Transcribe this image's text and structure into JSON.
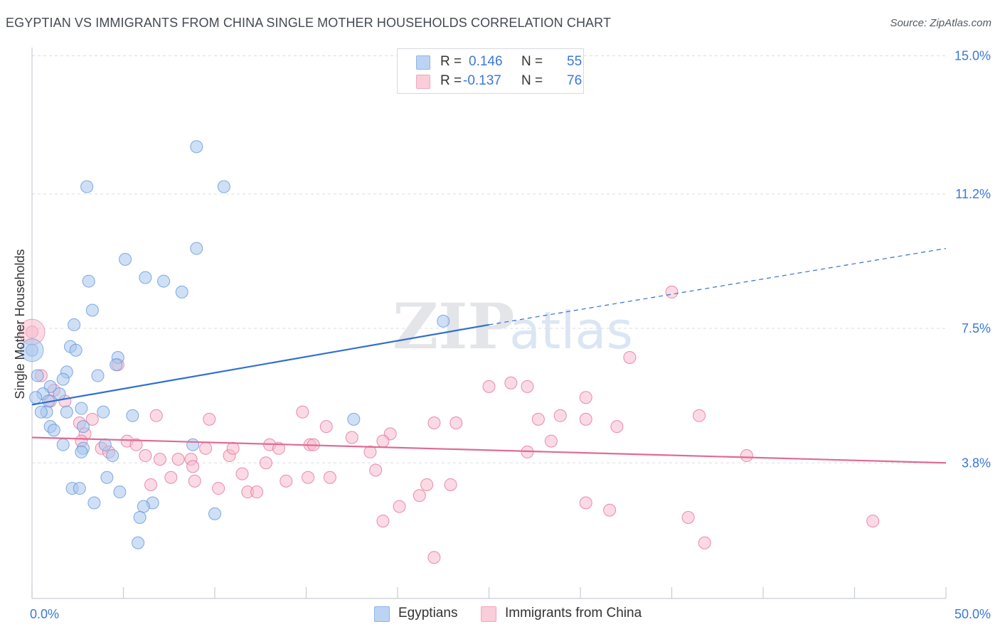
{
  "title": "EGYPTIAN VS IMMIGRANTS FROM CHINA SINGLE MOTHER HOUSEHOLDS CORRELATION CHART",
  "source": "Source: ZipAtlas.com",
  "watermark": {
    "zip": "ZIP",
    "atlas": "atlas"
  },
  "legend": {
    "r_label": "R =",
    "n_label": "N =",
    "egyptians": {
      "r": "0.146",
      "n": "55",
      "color": "#9dc0ee"
    },
    "china": {
      "r": "-0.137",
      "n": "76",
      "color": "#f6b6c8"
    }
  },
  "chart_data": {
    "type": "scatter",
    "title": "EGYPTIAN VS IMMIGRANTS FROM CHINA SINGLE MOTHER HOUSEHOLDS CORRELATION CHART",
    "xlabel": "",
    "ylabel": "Single Mother Households",
    "xlim": [
      0,
      50
    ],
    "ylim": [
      0,
      15
    ],
    "x_tick_labels": [
      "0.0%",
      "50.0%"
    ],
    "y_ticks": [
      3.8,
      7.5,
      11.2,
      15.0
    ],
    "y_tick_labels": [
      "3.8%",
      "7.5%",
      "11.2%",
      "15.0%"
    ],
    "grid": "horizontal dashed",
    "legend_position": "top-center and bottom",
    "series": [
      {
        "name": "Egyptians",
        "color": "#5b8fd6",
        "fill": "#a8c6ee",
        "r": 0.146,
        "n": 55,
        "trend": {
          "x0": 0,
          "y0": 5.4,
          "x1": 25,
          "y1": 7.6,
          "dashed_to_x": 50,
          "dashed_to_y": 9.7
        },
        "points": [
          [
            3.0,
            11.4
          ],
          [
            9.0,
            12.5
          ],
          [
            10.5,
            11.4
          ],
          [
            5.1,
            9.4
          ],
          [
            9.0,
            9.7
          ],
          [
            6.2,
            8.9
          ],
          [
            7.2,
            8.8
          ],
          [
            3.1,
            8.8
          ],
          [
            8.2,
            8.5
          ],
          [
            3.3,
            8.0
          ],
          [
            2.3,
            7.6
          ],
          [
            2.1,
            7.0
          ],
          [
            2.4,
            6.9
          ],
          [
            4.7,
            6.7
          ],
          [
            4.6,
            6.5
          ],
          [
            0.0,
            6.9
          ],
          [
            0.3,
            6.2
          ],
          [
            1.9,
            6.3
          ],
          [
            3.6,
            6.2
          ],
          [
            1.7,
            6.1
          ],
          [
            1.0,
            5.9
          ],
          [
            0.6,
            5.7
          ],
          [
            1.5,
            5.7
          ],
          [
            0.2,
            5.6
          ],
          [
            0.9,
            5.5
          ],
          [
            0.8,
            5.2
          ],
          [
            1.9,
            5.2
          ],
          [
            2.7,
            5.3
          ],
          [
            0.5,
            5.2
          ],
          [
            3.9,
            5.2
          ],
          [
            5.5,
            5.1
          ],
          [
            17.6,
            5.0
          ],
          [
            1.0,
            4.8
          ],
          [
            1.2,
            4.7
          ],
          [
            2.8,
            4.8
          ],
          [
            8.8,
            4.3
          ],
          [
            1.7,
            4.3
          ],
          [
            4.0,
            4.3
          ],
          [
            2.8,
            4.2
          ],
          [
            2.7,
            4.1
          ],
          [
            4.4,
            4.0
          ],
          [
            4.1,
            3.4
          ],
          [
            2.2,
            3.1
          ],
          [
            2.6,
            3.1
          ],
          [
            4.8,
            3.0
          ],
          [
            3.4,
            2.7
          ],
          [
            6.6,
            2.7
          ],
          [
            6.1,
            2.6
          ],
          [
            10.0,
            2.4
          ],
          [
            5.9,
            2.3
          ],
          [
            5.8,
            1.6
          ],
          [
            22.5,
            7.7
          ]
        ]
      },
      {
        "name": "Immigrants from China",
        "color": "#e06a95",
        "fill": "#f7bccc",
        "r": -0.137,
        "n": 76,
        "trend": {
          "x0": 0,
          "y0": 4.5,
          "x1": 50,
          "y1": 3.8
        },
        "points": [
          [
            0.0,
            7.4
          ],
          [
            0.5,
            6.2
          ],
          [
            4.7,
            6.5
          ],
          [
            1.2,
            5.8
          ],
          [
            1.8,
            5.5
          ],
          [
            1.0,
            5.5
          ],
          [
            3.3,
            5.0
          ],
          [
            6.8,
            5.1
          ],
          [
            9.7,
            5.0
          ],
          [
            14.8,
            5.2
          ],
          [
            16.1,
            4.8
          ],
          [
            19.6,
            4.6
          ],
          [
            22.0,
            4.9
          ],
          [
            23.2,
            4.9
          ],
          [
            25.0,
            5.9
          ],
          [
            26.2,
            6.0
          ],
          [
            27.1,
            5.9
          ],
          [
            27.7,
            5.0
          ],
          [
            28.9,
            5.1
          ],
          [
            30.3,
            5.6
          ],
          [
            30.3,
            5.0
          ],
          [
            32.0,
            4.8
          ],
          [
            32.7,
            6.7
          ],
          [
            35.0,
            8.5
          ],
          [
            36.5,
            5.1
          ],
          [
            2.6,
            4.9
          ],
          [
            2.9,
            4.6
          ],
          [
            2.7,
            4.4
          ],
          [
            3.8,
            4.2
          ],
          [
            4.2,
            4.1
          ],
          [
            5.2,
            4.4
          ],
          [
            5.7,
            4.3
          ],
          [
            6.2,
            4.0
          ],
          [
            7.0,
            3.9
          ],
          [
            8.0,
            3.9
          ],
          [
            8.7,
            3.9
          ],
          [
            8.8,
            3.7
          ],
          [
            9.5,
            4.2
          ],
          [
            10.8,
            4.0
          ],
          [
            11.0,
            4.2
          ],
          [
            11.5,
            3.5
          ],
          [
            12.8,
            3.8
          ],
          [
            13.0,
            4.3
          ],
          [
            13.5,
            4.2
          ],
          [
            15.2,
            4.3
          ],
          [
            15.4,
            4.3
          ],
          [
            17.5,
            4.5
          ],
          [
            18.5,
            4.1
          ],
          [
            19.2,
            4.4
          ],
          [
            6.5,
            3.2
          ],
          [
            7.6,
            3.4
          ],
          [
            8.9,
            3.3
          ],
          [
            10.2,
            3.1
          ],
          [
            11.8,
            3.0
          ],
          [
            12.3,
            3.0
          ],
          [
            13.9,
            3.3
          ],
          [
            15.1,
            3.4
          ],
          [
            16.3,
            3.4
          ],
          [
            18.8,
            3.6
          ],
          [
            20.1,
            2.6
          ],
          [
            19.2,
            2.2
          ],
          [
            21.2,
            2.9
          ],
          [
            21.6,
            3.2
          ],
          [
            22.9,
            3.2
          ],
          [
            27.1,
            4.1
          ],
          [
            28.4,
            4.4
          ],
          [
            30.3,
            2.7
          ],
          [
            31.6,
            2.5
          ],
          [
            35.9,
            2.3
          ],
          [
            36.8,
            1.6
          ],
          [
            39.1,
            4.0
          ],
          [
            46.0,
            2.2
          ],
          [
            22.0,
            1.2
          ]
        ]
      }
    ]
  }
}
